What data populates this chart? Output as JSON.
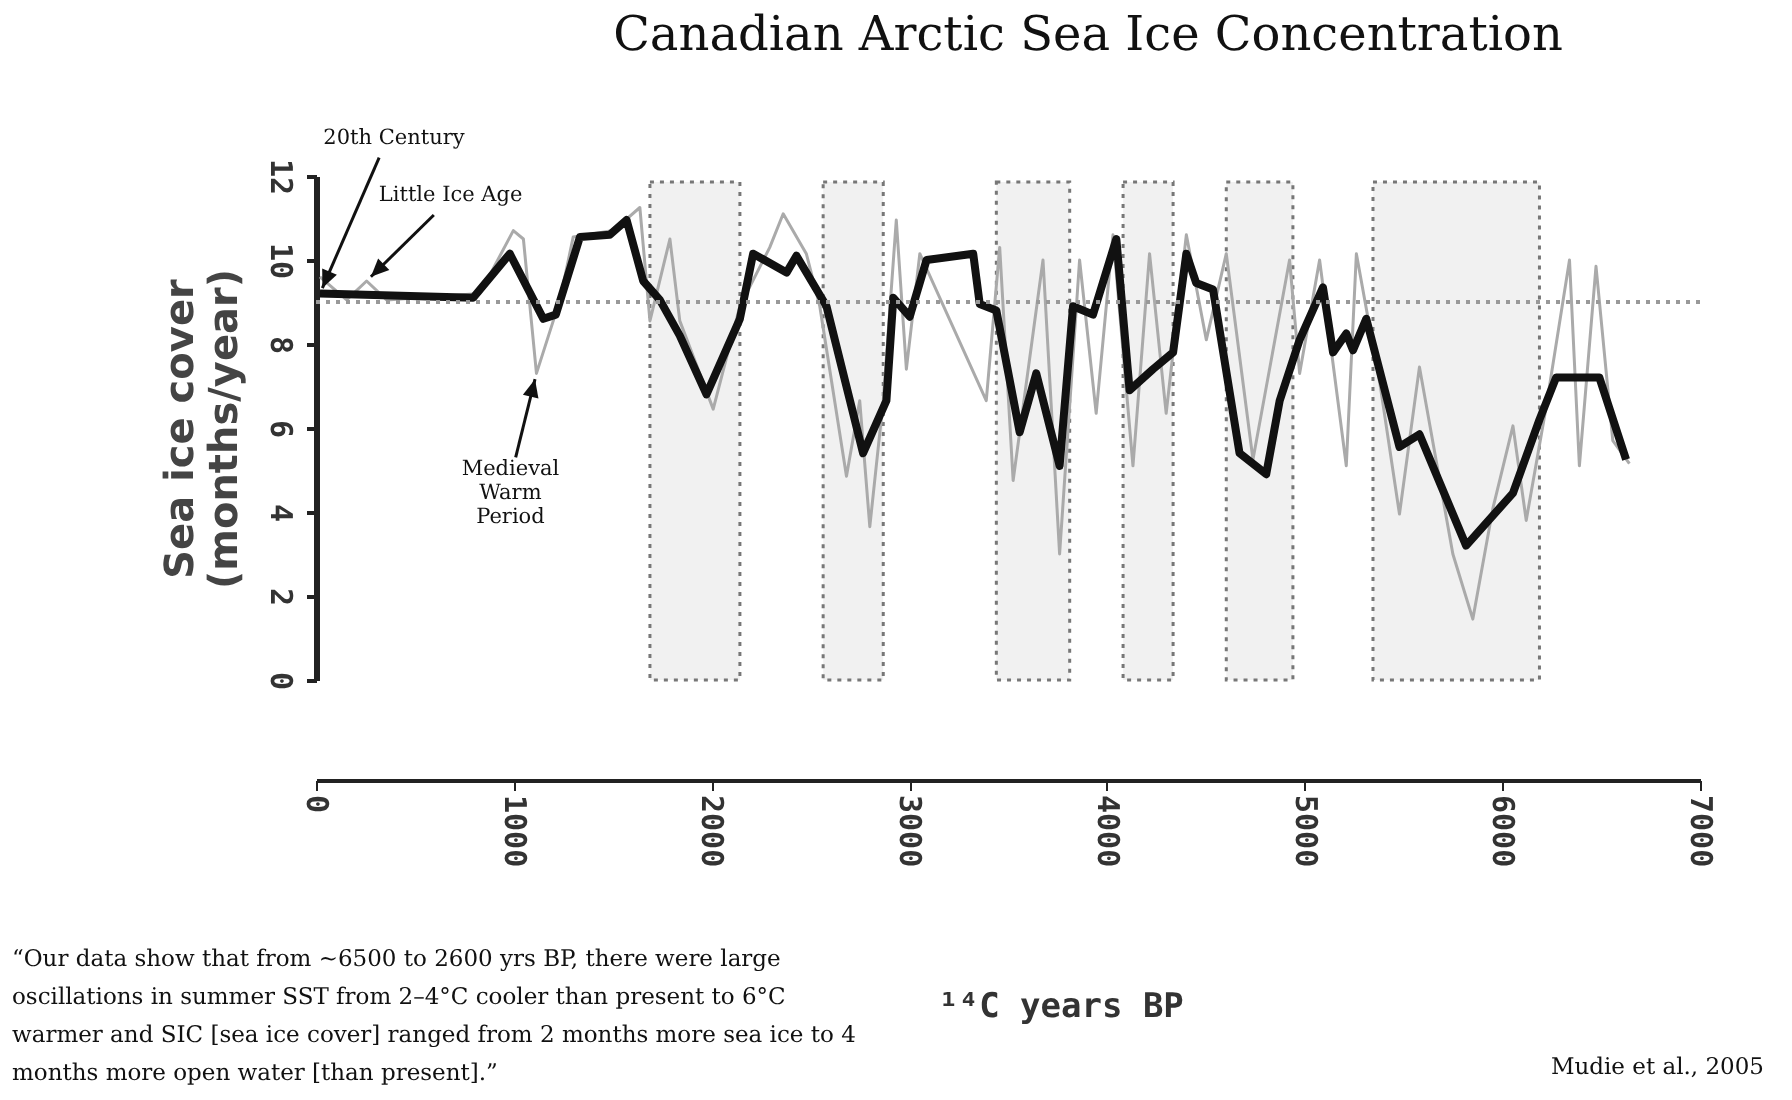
{
  "chart_data": {
    "type": "line",
    "title": "Canadian Arctic Sea Ice Concentration",
    "xlabel": "¹⁴C years BP",
    "ylabel": "Sea ice cover (months/year)",
    "xlim": [
      0,
      7000
    ],
    "xticks": [
      0,
      1000,
      2000,
      3000,
      4000,
      5000,
      6000,
      7000
    ],
    "ylim": [
      0,
      12
    ],
    "yticks": [
      0,
      2,
      4,
      6,
      8,
      10,
      12
    ],
    "grid": false,
    "legend": false,
    "marker": "none",
    "line_style": "solid",
    "series": [
      {
        "color": "#aaaaaa",
        "x": [
          20,
          155,
          256,
          357,
          829,
          998,
          1049,
          1115,
          1234,
          1301,
          1504,
          1638,
          1689,
          1790,
          1840,
          2009,
          2144,
          2295,
          2363,
          2480,
          2548,
          2683,
          2750,
          2801,
          2869,
          2935,
          2986,
          3054,
          3390,
          3458,
          3526,
          3677,
          3761,
          3862,
          3946,
          4031,
          4132,
          4216,
          4300,
          4402,
          4503,
          4604,
          4739,
          4924,
          4975,
          5076,
          5211,
          5262,
          5383,
          5480,
          5581,
          5750,
          5851,
          5953,
          6054,
          6121,
          6222,
          6340,
          6390,
          6474,
          6559,
          6643
        ],
        "values": [
          9.6,
          9.05,
          9.5,
          9.05,
          9.2,
          10.7,
          10.5,
          7.3,
          9.05,
          10.55,
          10.7,
          11.25,
          8.55,
          10.5,
          8.55,
          6.45,
          8.9,
          10.3,
          11.1,
          10.15,
          8.9,
          4.85,
          6.65,
          3.65,
          6.65,
          10.95,
          7.4,
          10.15,
          6.65,
          10.3,
          4.75,
          10,
          3.0,
          10,
          6.35,
          10.6,
          5.1,
          10.15,
          6.35,
          10.6,
          8.1,
          10.15,
          5.25,
          10,
          7.3,
          10,
          5.1,
          10.15,
          7.0,
          3.95,
          7.45,
          3.0,
          1.45,
          4.1,
          6.05,
          3.8,
          6.5,
          10,
          5.1,
          9.85,
          5.7,
          5.15
        ]
      },
      {
        "color": "#111111",
        "x": [
          20,
          795,
          980,
          1150,
          1213,
          1335,
          1486,
          1571,
          1655,
          1739,
          1840,
          1975,
          2144,
          2211,
          2380,
          2430,
          2582,
          2767,
          2885,
          2920,
          3003,
          3088,
          3324,
          3357,
          3441,
          3559,
          3643,
          3761,
          3829,
          3930,
          4048,
          4115,
          4233,
          4335,
          4402,
          4452,
          4537,
          4671,
          4806,
          4874,
          4975,
          5093,
          5144,
          5211,
          5245,
          5312,
          5480,
          5581,
          5817,
          6054,
          6188,
          6272,
          6491,
          6626
        ],
        "values": [
          9.2,
          9.1,
          10.15,
          8.6,
          8.7,
          10.55,
          10.6,
          10.95,
          9.5,
          9.05,
          8.2,
          6.8,
          8.6,
          10.15,
          9.7,
          10.1,
          8.9,
          5.4,
          6.65,
          9.1,
          8.65,
          10,
          10.15,
          8.95,
          8.8,
          5.9,
          7.3,
          5.1,
          8.9,
          8.7,
          10.5,
          6.9,
          7.4,
          7.8,
          10.15,
          9.45,
          9.3,
          5.4,
          4.9,
          6.65,
          8.1,
          9.35,
          7.8,
          8.25,
          7.85,
          8.6,
          5.55,
          5.85,
          3.2,
          4.45,
          6.2,
          7.2,
          7.2,
          5.25
        ]
      }
    ],
    "ref_lines": [
      {
        "axis": "y",
        "value": 9,
        "color": "#999999",
        "line_style": "dotted"
      }
    ],
    "bands": [
      {
        "axis": "x",
        "from": 1689,
        "to": 2144
      },
      {
        "axis": "x",
        "from": 2565,
        "to": 2869
      },
      {
        "axis": "x",
        "from": 3441,
        "to": 3812
      },
      {
        "axis": "x",
        "from": 4082,
        "to": 4335
      },
      {
        "axis": "x",
        "from": 4604,
        "to": 4941
      },
      {
        "axis": "x",
        "from": 5346,
        "to": 6188
      }
    ],
    "annotations": [
      {
        "text": "20th Century",
        "x": 20,
        "y": 9.2
      },
      {
        "text": "Little Ice Age",
        "x": 256,
        "y": 9.5
      },
      {
        "text": "Medieval Warm Period",
        "x": 1115,
        "y": 7.3
      },
      "“Our data show that from ~6500 to 2600 yrs BP, there were large oscillations in summer SST from 2–4°C cooler than present to 6°C warmer and SIC [sea ice cover] ranged from 2 months more sea ice to 4 months more open water [than present].”",
      "Mudie et al., 2005"
    ]
  }
}
